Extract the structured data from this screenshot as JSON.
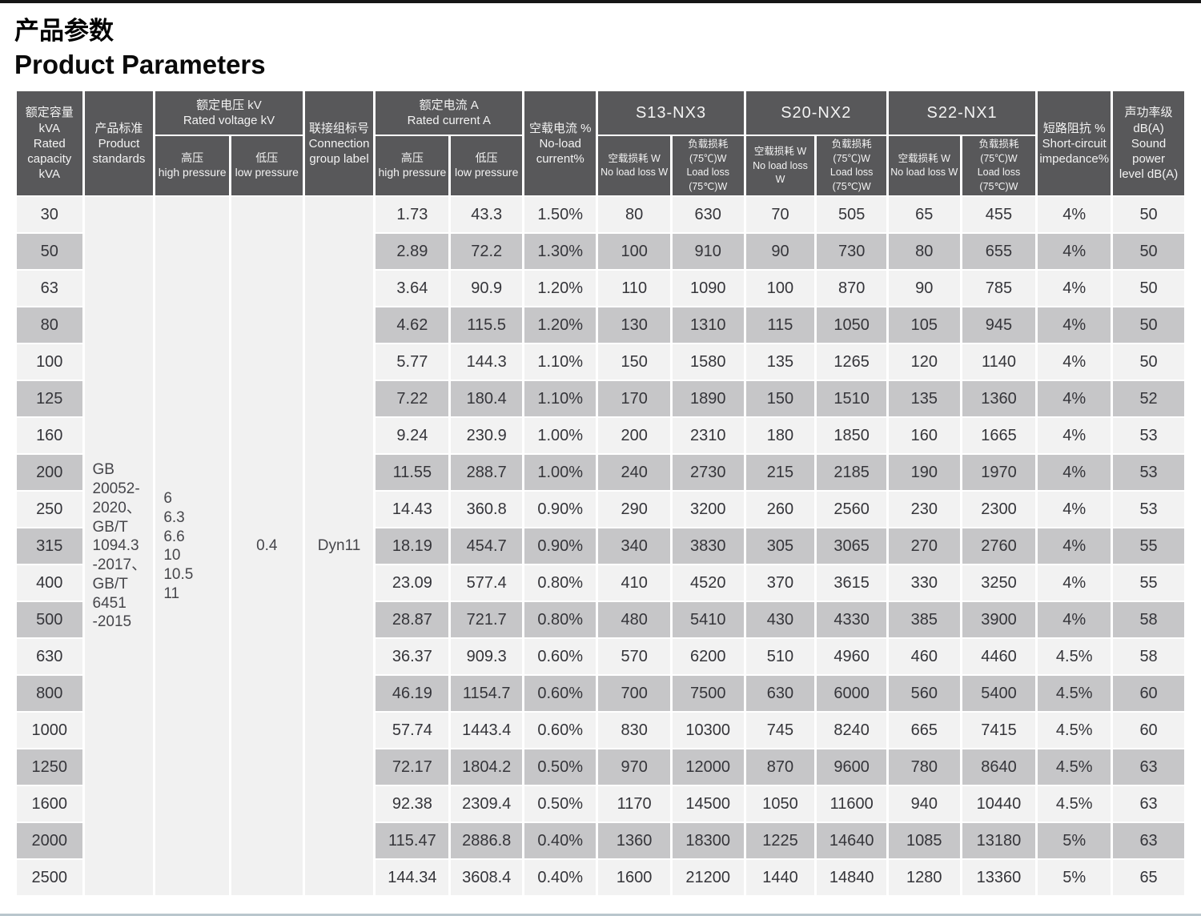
{
  "page": {
    "title_zh": "产品参数",
    "title_en": "Product Parameters"
  },
  "colors": {
    "header_bg": "#58585a",
    "header_text": "#f3f3f3",
    "row_light": "#f2f2f2",
    "row_alt": "#c6c6c8",
    "data_text": "#35353a",
    "top_bar": "#161616",
    "bottom_bar": "#b9c6cd"
  },
  "table": {
    "headers": {
      "capacity": "额定容量kVA\nRated\ncapacity kVA",
      "standards": "产品标准\nProduct\nstandards",
      "voltage_group": "额定电压 kV\nRated voltage kV",
      "high_pressure": "高压\nhigh pressure",
      "low_pressure": "低压\nlow pressure",
      "connection": "联接组标号\nConnection\ngroup label",
      "current_group": "额定电流 A\nRated current A",
      "no_load_current": "空载电流 %\nNo-load\ncurrent%",
      "s13": "S13-NX3",
      "s20": "S20-NX2",
      "s22": "S22-NX1",
      "no_load_loss": "空载损耗 W\nNo load loss W",
      "load_loss": "负载损耗(75℃)W\nLoad loss (75℃)W",
      "impedance": "短路阻抗 %\nShort-circuit\nimpedance%",
      "sound": "声功率级 dB(A)\nSound power\nlevel dB(A)"
    },
    "merged": {
      "standards": "GB\n20052-\n2020、\nGB/T\n1094.3\n-2017、\nGB/T\n6451\n-2015",
      "high_voltage_options": "6\n6.3\n6.6\n10\n10.5\n11",
      "low_voltage": "0.4",
      "connection_group": "Dyn11"
    },
    "rows": [
      [
        "30",
        "1.73",
        "43.3",
        "1.50%",
        "80",
        "630",
        "70",
        "505",
        "65",
        "455",
        "4%",
        "50"
      ],
      [
        "50",
        "2.89",
        "72.2",
        "1.30%",
        "100",
        "910",
        "90",
        "730",
        "80",
        "655",
        "4%",
        "50"
      ],
      [
        "63",
        "3.64",
        "90.9",
        "1.20%",
        "110",
        "1090",
        "100",
        "870",
        "90",
        "785",
        "4%",
        "50"
      ],
      [
        "80",
        "4.62",
        "115.5",
        "1.20%",
        "130",
        "1310",
        "115",
        "1050",
        "105",
        "945",
        "4%",
        "50"
      ],
      [
        "100",
        "5.77",
        "144.3",
        "1.10%",
        "150",
        "1580",
        "135",
        "1265",
        "120",
        "1140",
        "4%",
        "50"
      ],
      [
        "125",
        "7.22",
        "180.4",
        "1.10%",
        "170",
        "1890",
        "150",
        "1510",
        "135",
        "1360",
        "4%",
        "52"
      ],
      [
        "160",
        "9.24",
        "230.9",
        "1.00%",
        "200",
        "2310",
        "180",
        "1850",
        "160",
        "1665",
        "4%",
        "53"
      ],
      [
        "200",
        "11.55",
        "288.7",
        "1.00%",
        "240",
        "2730",
        "215",
        "2185",
        "190",
        "1970",
        "4%",
        "53"
      ],
      [
        "250",
        "14.43",
        "360.8",
        "0.90%",
        "290",
        "3200",
        "260",
        "2560",
        "230",
        "2300",
        "4%",
        "53"
      ],
      [
        "315",
        "18.19",
        "454.7",
        "0.90%",
        "340",
        "3830",
        "305",
        "3065",
        "270",
        "2760",
        "4%",
        "55"
      ],
      [
        "400",
        "23.09",
        "577.4",
        "0.80%",
        "410",
        "4520",
        "370",
        "3615",
        "330",
        "3250",
        "4%",
        "55"
      ],
      [
        "500",
        "28.87",
        "721.7",
        "0.80%",
        "480",
        "5410",
        "430",
        "4330",
        "385",
        "3900",
        "4%",
        "58"
      ],
      [
        "630",
        "36.37",
        "909.3",
        "0.60%",
        "570",
        "6200",
        "510",
        "4960",
        "460",
        "4460",
        "4.5%",
        "58"
      ],
      [
        "800",
        "46.19",
        "1154.7",
        "0.60%",
        "700",
        "7500",
        "630",
        "6000",
        "560",
        "5400",
        "4.5%",
        "60"
      ],
      [
        "1000",
        "57.74",
        "1443.4",
        "0.60%",
        "830",
        "10300",
        "745",
        "8240",
        "665",
        "7415",
        "4.5%",
        "60"
      ],
      [
        "1250",
        "72.17",
        "1804.2",
        "0.50%",
        "970",
        "12000",
        "870",
        "9600",
        "780",
        "8640",
        "4.5%",
        "63"
      ],
      [
        "1600",
        "92.38",
        "2309.4",
        "0.50%",
        "1170",
        "14500",
        "1050",
        "11600",
        "940",
        "10440",
        "4.5%",
        "63"
      ],
      [
        "2000",
        "115.47",
        "2886.8",
        "0.40%",
        "1360",
        "18300",
        "1225",
        "14640",
        "1085",
        "13180",
        "5%",
        "63"
      ],
      [
        "2500",
        "144.34",
        "3608.4",
        "0.40%",
        "1600",
        "21200",
        "1440",
        "14840",
        "1280",
        "13360",
        "5%",
        "65"
      ]
    ]
  }
}
